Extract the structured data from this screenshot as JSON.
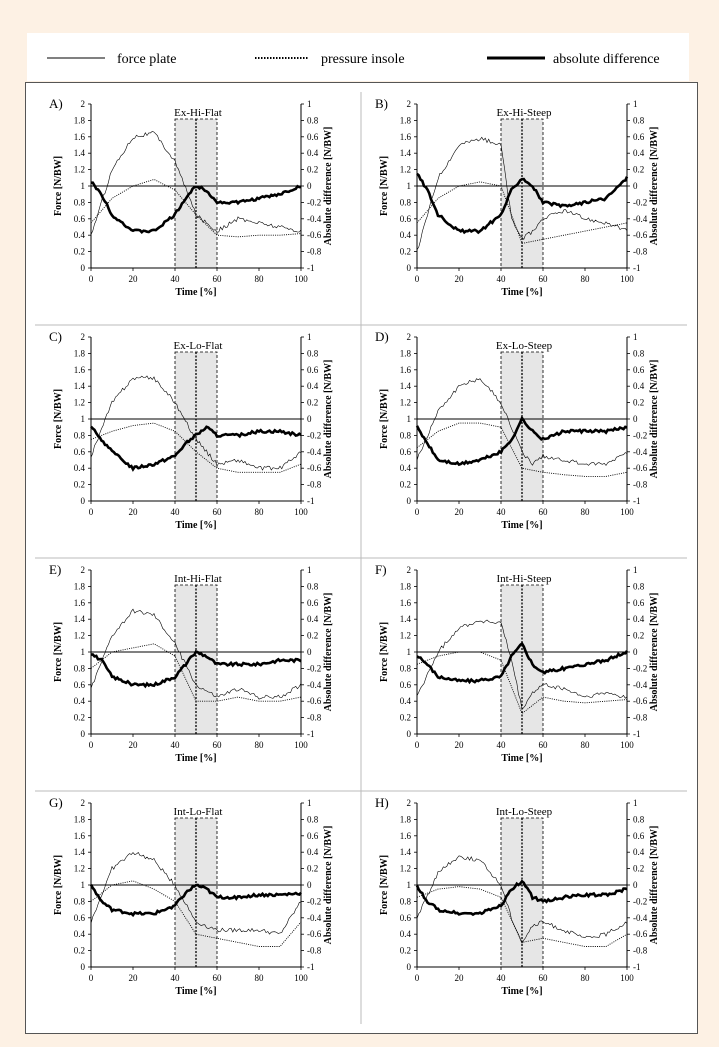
{
  "legend": {
    "force_plate": "force plate",
    "pressure_insole": "pressure insole",
    "absolute_difference": "absolute difference"
  },
  "axes": {
    "xlabel": "Time [%]",
    "ylabel_left": "Force [N/BW]",
    "ylabel_right": "Absolute difference [N/BW]",
    "x_ticks": [
      "0",
      "20",
      "40",
      "60",
      "80",
      "100"
    ],
    "y_left_ticks": [
      "0",
      "0.2",
      "0.4",
      "0.6",
      "0.8",
      "1",
      "1.2",
      "1.4",
      "1.6",
      "1.8",
      "2"
    ],
    "y_right_ticks": [
      "-1",
      "-0.8",
      "-0.6",
      "-0.4",
      "-0.2",
      "0",
      "0.2",
      "0.4",
      "0.6",
      "0.8",
      "1"
    ]
  },
  "chart_data": [
    {
      "type": "line",
      "panel_label": "A)",
      "title": "Ex-Hi-Flat",
      "x_range": [
        0,
        100
      ],
      "ylim_left": [
        0,
        2
      ],
      "ylim_right": [
        -1,
        1
      ],
      "shaded_interval": [
        40,
        60
      ],
      "dotted_marker_x": 50,
      "series": [
        {
          "name": "force plate",
          "axis": "left",
          "x": [
            0,
            10,
            20,
            30,
            40,
            50,
            60,
            70,
            80,
            90,
            100
          ],
          "y": [
            0.4,
            1.2,
            1.6,
            1.65,
            1.3,
            0.65,
            0.45,
            0.6,
            0.55,
            0.5,
            0.45
          ]
        },
        {
          "name": "pressure insole",
          "axis": "left",
          "x": [
            0,
            10,
            20,
            30,
            40,
            50,
            60,
            70,
            80,
            90,
            100
          ],
          "y": [
            0.55,
            0.85,
            1.0,
            1.08,
            0.95,
            0.65,
            0.4,
            0.38,
            0.4,
            0.4,
            0.42
          ]
        },
        {
          "name": "absolute difference",
          "axis": "right",
          "x": [
            0,
            5,
            10,
            20,
            30,
            40,
            45,
            50,
            55,
            60,
            70,
            80,
            90,
            100
          ],
          "y": [
            0.05,
            -0.1,
            -0.35,
            -0.55,
            -0.55,
            -0.35,
            -0.15,
            0.0,
            -0.05,
            -0.2,
            -0.2,
            -0.15,
            -0.1,
            0.0
          ]
        }
      ]
    },
    {
      "type": "line",
      "panel_label": "B)",
      "title": "Ex-Hi-Steep",
      "x_range": [
        0,
        100
      ],
      "ylim_left": [
        0,
        2
      ],
      "ylim_right": [
        -1,
        1
      ],
      "shaded_interval": [
        40,
        60
      ],
      "dotted_marker_x": 50,
      "series": [
        {
          "name": "force plate",
          "axis": "left",
          "x": [
            0,
            10,
            20,
            30,
            40,
            45,
            50,
            55,
            60,
            70,
            80,
            90,
            100
          ],
          "y": [
            0.2,
            1.1,
            1.5,
            1.58,
            1.5,
            0.6,
            0.35,
            0.45,
            0.6,
            0.7,
            0.6,
            0.55,
            0.45
          ]
        },
        {
          "name": "pressure insole",
          "axis": "left",
          "x": [
            0,
            10,
            20,
            30,
            40,
            50,
            60,
            70,
            80,
            90,
            100
          ],
          "y": [
            0.55,
            0.85,
            1.0,
            1.05,
            1.0,
            0.3,
            0.35,
            0.4,
            0.45,
            0.5,
            0.55
          ]
        },
        {
          "name": "absolute difference",
          "axis": "right",
          "x": [
            0,
            5,
            10,
            20,
            30,
            40,
            45,
            50,
            55,
            60,
            70,
            80,
            90,
            100
          ],
          "y": [
            0.15,
            -0.05,
            -0.35,
            -0.55,
            -0.55,
            -0.35,
            -0.05,
            0.1,
            0.0,
            -0.2,
            -0.25,
            -0.2,
            -0.15,
            0.1
          ]
        }
      ]
    },
    {
      "type": "line",
      "panel_label": "C)",
      "title": "Ex-Lo-Flat",
      "x_range": [
        0,
        100
      ],
      "ylim_left": [
        0,
        2
      ],
      "ylim_right": [
        -1,
        1
      ],
      "shaded_interval": [
        40,
        60
      ],
      "dotted_marker_x": 50,
      "series": [
        {
          "name": "force plate",
          "axis": "left",
          "x": [
            0,
            10,
            20,
            30,
            40,
            50,
            60,
            70,
            80,
            90,
            100
          ],
          "y": [
            0.55,
            1.2,
            1.5,
            1.5,
            1.2,
            0.75,
            0.45,
            0.5,
            0.4,
            0.4,
            0.6
          ]
        },
        {
          "name": "pressure insole",
          "axis": "left",
          "x": [
            0,
            10,
            20,
            30,
            40,
            50,
            60,
            70,
            80,
            90,
            100
          ],
          "y": [
            0.75,
            0.85,
            0.92,
            0.95,
            0.85,
            0.6,
            0.4,
            0.35,
            0.35,
            0.35,
            0.45
          ]
        },
        {
          "name": "absolute difference",
          "axis": "right",
          "x": [
            0,
            5,
            10,
            20,
            30,
            40,
            45,
            50,
            55,
            60,
            70,
            80,
            90,
            100
          ],
          "y": [
            -0.1,
            -0.25,
            -0.4,
            -0.6,
            -0.55,
            -0.45,
            -0.3,
            -0.2,
            -0.1,
            -0.2,
            -0.2,
            -0.15,
            -0.15,
            -0.2
          ]
        }
      ]
    },
    {
      "type": "line",
      "panel_label": "D)",
      "title": "Ex-Lo-Steep",
      "x_range": [
        0,
        100
      ],
      "ylim_left": [
        0,
        2
      ],
      "ylim_right": [
        -1,
        1
      ],
      "shaded_interval": [
        40,
        60
      ],
      "dotted_marker_x": 50,
      "series": [
        {
          "name": "force plate",
          "axis": "left",
          "x": [
            0,
            10,
            20,
            30,
            40,
            45,
            50,
            55,
            60,
            70,
            80,
            90,
            100
          ],
          "y": [
            0.5,
            1.1,
            1.4,
            1.5,
            1.2,
            0.9,
            0.6,
            0.45,
            0.55,
            0.5,
            0.45,
            0.45,
            0.6
          ]
        },
        {
          "name": "pressure insole",
          "axis": "left",
          "x": [
            0,
            10,
            20,
            30,
            40,
            50,
            60,
            70,
            80,
            90,
            100
          ],
          "y": [
            0.65,
            0.85,
            0.95,
            0.95,
            0.9,
            0.4,
            0.35,
            0.32,
            0.3,
            0.3,
            0.35
          ]
        },
        {
          "name": "absolute difference",
          "axis": "right",
          "x": [
            0,
            5,
            10,
            20,
            30,
            40,
            45,
            50,
            55,
            60,
            70,
            80,
            90,
            100
          ],
          "y": [
            -0.1,
            -0.3,
            -0.5,
            -0.55,
            -0.5,
            -0.4,
            -0.25,
            0.0,
            -0.15,
            -0.25,
            -0.15,
            -0.15,
            -0.15,
            -0.1
          ]
        }
      ]
    },
    {
      "type": "line",
      "panel_label": "E)",
      "title": "Int-Hi-Flat",
      "x_range": [
        0,
        100
      ],
      "ylim_left": [
        0,
        2
      ],
      "ylim_right": [
        -1,
        1
      ],
      "shaded_interval": [
        40,
        60
      ],
      "dotted_marker_x": 50,
      "series": [
        {
          "name": "force plate",
          "axis": "left",
          "x": [
            0,
            10,
            20,
            30,
            40,
            50,
            60,
            70,
            80,
            90,
            100
          ],
          "y": [
            0.55,
            1.2,
            1.5,
            1.45,
            1.1,
            0.6,
            0.45,
            0.55,
            0.45,
            0.45,
            0.6
          ]
        },
        {
          "name": "pressure insole",
          "axis": "left",
          "x": [
            0,
            10,
            20,
            30,
            40,
            50,
            60,
            70,
            80,
            90,
            100
          ],
          "y": [
            0.8,
            1.0,
            1.05,
            1.1,
            0.95,
            0.4,
            0.4,
            0.45,
            0.4,
            0.4,
            0.45
          ]
        },
        {
          "name": "absolute difference",
          "axis": "right",
          "x": [
            0,
            5,
            10,
            20,
            30,
            40,
            45,
            50,
            55,
            60,
            70,
            80,
            90,
            100
          ],
          "y": [
            -0.02,
            -0.1,
            -0.3,
            -0.4,
            -0.4,
            -0.3,
            -0.15,
            0.0,
            -0.05,
            -0.15,
            -0.15,
            -0.15,
            -0.1,
            -0.1
          ]
        }
      ]
    },
    {
      "type": "line",
      "panel_label": "F)",
      "title": "Int-Hi-Steep",
      "x_range": [
        0,
        100
      ],
      "ylim_left": [
        0,
        2
      ],
      "ylim_right": [
        -1,
        1
      ],
      "shaded_interval": [
        40,
        60
      ],
      "dotted_marker_x": 50,
      "series": [
        {
          "name": "force plate",
          "axis": "left",
          "x": [
            0,
            10,
            20,
            30,
            40,
            45,
            50,
            55,
            60,
            70,
            80,
            90,
            100
          ],
          "y": [
            0.45,
            1.0,
            1.3,
            1.38,
            1.35,
            0.9,
            0.3,
            0.5,
            0.6,
            0.55,
            0.45,
            0.5,
            0.45
          ]
        },
        {
          "name": "pressure insole",
          "axis": "left",
          "x": [
            0,
            10,
            20,
            30,
            40,
            50,
            60,
            70,
            80,
            90,
            100
          ],
          "y": [
            0.85,
            0.95,
            1.0,
            1.0,
            0.9,
            0.25,
            0.45,
            0.4,
            0.38,
            0.4,
            0.42
          ]
        },
        {
          "name": "absolute difference",
          "axis": "right",
          "x": [
            0,
            5,
            10,
            20,
            30,
            40,
            45,
            50,
            55,
            60,
            70,
            80,
            90,
            100
          ],
          "y": [
            -0.05,
            -0.15,
            -0.3,
            -0.35,
            -0.35,
            -0.3,
            -0.05,
            0.1,
            -0.15,
            -0.25,
            -0.2,
            -0.15,
            -0.1,
            0.0
          ]
        }
      ]
    },
    {
      "type": "line",
      "panel_label": "G)",
      "title": "Int-Lo-Flat",
      "x_range": [
        0,
        100
      ],
      "ylim_left": [
        0,
        2
      ],
      "ylim_right": [
        -1,
        1
      ],
      "shaded_interval": [
        40,
        60
      ],
      "dotted_marker_x": 50,
      "series": [
        {
          "name": "force plate",
          "axis": "left",
          "x": [
            0,
            10,
            20,
            30,
            40,
            50,
            60,
            70,
            80,
            90,
            100
          ],
          "y": [
            0.55,
            1.2,
            1.4,
            1.3,
            1.0,
            0.55,
            0.45,
            0.45,
            0.45,
            0.4,
            0.8
          ]
        },
        {
          "name": "pressure insole",
          "axis": "left",
          "x": [
            0,
            10,
            20,
            30,
            40,
            50,
            60,
            70,
            80,
            90,
            100
          ],
          "y": [
            0.8,
            1.0,
            1.05,
            0.95,
            0.8,
            0.4,
            0.35,
            0.3,
            0.25,
            0.25,
            0.55
          ]
        },
        {
          "name": "absolute difference",
          "axis": "right",
          "x": [
            0,
            5,
            10,
            20,
            30,
            40,
            45,
            50,
            55,
            60,
            70,
            80,
            90,
            100
          ],
          "y": [
            0.0,
            -0.2,
            -0.3,
            -0.35,
            -0.35,
            -0.25,
            -0.1,
            0.0,
            -0.05,
            -0.15,
            -0.15,
            -0.12,
            -0.12,
            -0.1
          ]
        }
      ]
    },
    {
      "type": "line",
      "panel_label": "H)",
      "title": "Int-Lo-Steep",
      "x_range": [
        0,
        100
      ],
      "ylim_left": [
        0,
        2
      ],
      "ylim_right": [
        -1,
        1
      ],
      "shaded_interval": [
        40,
        60
      ],
      "dotted_marker_x": 50,
      "series": [
        {
          "name": "force plate",
          "axis": "left",
          "x": [
            0,
            10,
            20,
            30,
            40,
            45,
            50,
            55,
            60,
            70,
            80,
            90,
            100
          ],
          "y": [
            0.6,
            1.15,
            1.35,
            1.3,
            1.0,
            0.6,
            0.3,
            0.5,
            0.55,
            0.45,
            0.35,
            0.4,
            0.55
          ]
        },
        {
          "name": "pressure insole",
          "axis": "left",
          "x": [
            0,
            10,
            20,
            30,
            40,
            50,
            60,
            70,
            80,
            90,
            100
          ],
          "y": [
            0.85,
            0.95,
            0.98,
            0.95,
            0.85,
            0.3,
            0.35,
            0.3,
            0.25,
            0.25,
            0.4
          ]
        },
        {
          "name": "absolute difference",
          "axis": "right",
          "x": [
            0,
            5,
            10,
            20,
            30,
            40,
            45,
            50,
            55,
            60,
            70,
            80,
            90,
            100
          ],
          "y": [
            -0.02,
            -0.2,
            -0.3,
            -0.35,
            -0.35,
            -0.25,
            -0.05,
            0.05,
            -0.15,
            -0.2,
            -0.15,
            -0.12,
            -0.12,
            -0.05
          ]
        }
      ]
    }
  ]
}
